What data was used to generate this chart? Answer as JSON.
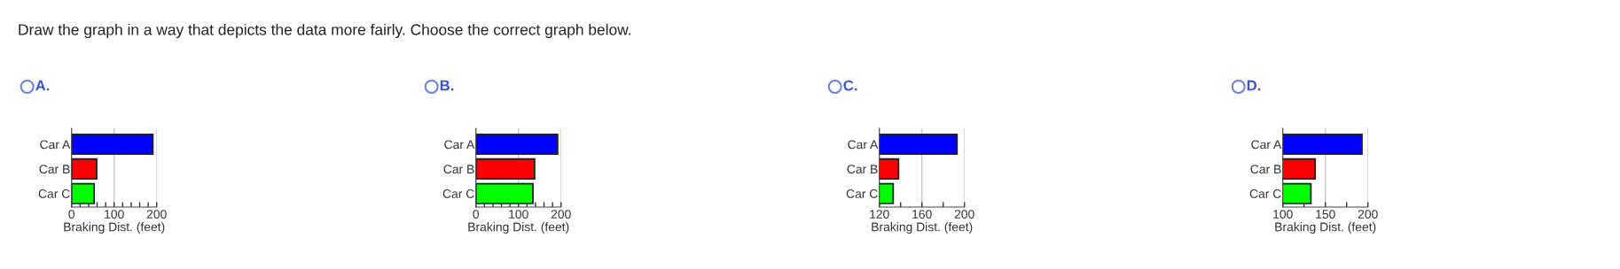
{
  "chart_data": [
    {
      "type": "bar",
      "orientation": "horizontal",
      "title": "A.",
      "annotations": [
        "Draw the graph in a way that depicts the data more fairly. Choose the correct graph below."
      ],
      "categories": [
        "Car A",
        "Car B",
        "Car C"
      ],
      "values": [
        191,
        59,
        53
      ],
      "colors": [
        "#0000ff",
        "#ff0000",
        "#00ff00"
      ],
      "xlabel": "Braking Dist. (feet)",
      "xlim": [
        0,
        200
      ],
      "xticks": [
        0,
        {
          "value": 20,
          "label": null
        },
        {
          "value": 40,
          "label": null
        },
        {
          "value": 60,
          "label": null
        },
        {
          "value": 80,
          "label": null
        },
        100,
        {
          "value": 120,
          "label": null
        },
        {
          "value": 140,
          "label": null
        },
        {
          "value": 160,
          "label": null
        },
        {
          "value": 180,
          "label": null
        },
        200
      ],
      "grid": "x"
    },
    {
      "type": "bar",
      "orientation": "horizontal",
      "title": "B.",
      "categories": [
        "Car A",
        "Car B",
        "Car C"
      ],
      "values": [
        192,
        138,
        134
      ],
      "colors": [
        "#0000ff",
        "#ff0000",
        "#00ff00"
      ],
      "xlabel": "Braking Dist. (feet)",
      "xlim": [
        0,
        200
      ],
      "xticks": [
        0,
        {
          "value": 20,
          "label": null
        },
        {
          "value": 40,
          "label": null
        },
        {
          "value": 60,
          "label": null
        },
        {
          "value": 80,
          "label": null
        },
        100,
        {
          "value": 120,
          "label": null
        },
        {
          "value": 140,
          "label": null
        },
        {
          "value": 160,
          "label": null
        },
        {
          "value": 180,
          "label": null
        },
        200
      ],
      "grid": "x"
    },
    {
      "type": "bar",
      "orientation": "horizontal",
      "title": "C.",
      "categories": [
        "Car A",
        "Car B",
        "Car C"
      ],
      "values": [
        193,
        138,
        133
      ],
      "colors": [
        "#0000ff",
        "#ff0000",
        "#00ff00"
      ],
      "xlabel": "Braking Dist. (feet)",
      "xlim": [
        120,
        200
      ],
      "xticks": [
        120,
        {
          "value": 140,
          "label": null
        },
        160,
        {
          "value": 180,
          "label": null
        },
        200
      ],
      "grid": "x"
    },
    {
      "type": "bar",
      "orientation": "horizontal",
      "title": "D.",
      "categories": [
        "Car A",
        "Car B",
        "Car C"
      ],
      "values": [
        193,
        138,
        133
      ],
      "colors": [
        "#0000ff",
        "#ff0000",
        "#00ff00"
      ],
      "xlabel": "Braking Dist. (feet)",
      "xlim": [
        100,
        200
      ],
      "xticks": [
        100,
        {
          "value": 125,
          "label": null
        },
        150,
        {
          "value": 175,
          "label": null
        },
        200
      ],
      "grid": "x"
    }
  ]
}
